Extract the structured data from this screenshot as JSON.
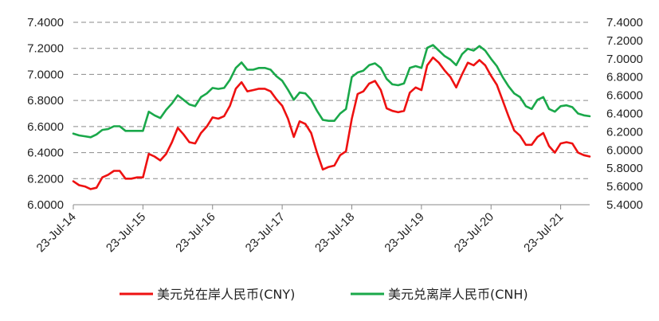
{
  "chart_data": {
    "type": "line",
    "title": "",
    "xlabel": "",
    "ylabel_left": "",
    "ylabel_right": "",
    "grid": "horizontal dashed",
    "legend_position": "bottom",
    "x_tick_labels": [
      "23-Jul-14",
      "23-Jul-15",
      "23-Jul-16",
      "23-Jul-17",
      "23-Jul-18",
      "23-Jul-19",
      "23-Jul-20",
      "23-Jul-21"
    ],
    "x_range": [
      "2014-07",
      "2021-12"
    ],
    "y_left": {
      "ylim": [
        6.0,
        7.4
      ],
      "ticks": [
        "6.0000",
        "6.2000",
        "6.4000",
        "6.6000",
        "6.8000",
        "7.0000",
        "7.2000",
        "7.4000"
      ]
    },
    "y_right": {
      "ylim": [
        5.4,
        7.4
      ],
      "ticks": [
        "5.4000",
        "5.6000",
        "5.8000",
        "6.0000",
        "6.2000",
        "6.4000",
        "6.6000",
        "6.8000",
        "7.0000",
        "7.2000",
        "7.4000"
      ]
    },
    "series": [
      {
        "name": "美元兑在岸人民币(CNY)",
        "color": "#ee1111",
        "axis": "left",
        "x": [
          "2014-07",
          "2014-08",
          "2014-09",
          "2014-10",
          "2014-11",
          "2014-12",
          "2015-01",
          "2015-02",
          "2015-03",
          "2015-04",
          "2015-05",
          "2015-06",
          "2015-07",
          "2015-08",
          "2015-09",
          "2015-10",
          "2015-11",
          "2015-12",
          "2016-01",
          "2016-02",
          "2016-03",
          "2016-04",
          "2016-05",
          "2016-06",
          "2016-07",
          "2016-08",
          "2016-09",
          "2016-10",
          "2016-11",
          "2016-12",
          "2017-01",
          "2017-02",
          "2017-03",
          "2017-04",
          "2017-05",
          "2017-06",
          "2017-07",
          "2017-08",
          "2017-09",
          "2017-10",
          "2017-11",
          "2017-12",
          "2018-01",
          "2018-02",
          "2018-03",
          "2018-04",
          "2018-05",
          "2018-06",
          "2018-07",
          "2018-08",
          "2018-09",
          "2018-10",
          "2018-11",
          "2018-12",
          "2019-01",
          "2019-02",
          "2019-03",
          "2019-04",
          "2019-05",
          "2019-06",
          "2019-07",
          "2019-08",
          "2019-09",
          "2019-10",
          "2019-11",
          "2019-12",
          "2020-01",
          "2020-02",
          "2020-03",
          "2020-04",
          "2020-05",
          "2020-06",
          "2020-07",
          "2020-08",
          "2020-09",
          "2020-10",
          "2020-11",
          "2020-12",
          "2021-01",
          "2021-02",
          "2021-03",
          "2021-04",
          "2021-05",
          "2021-06",
          "2021-07",
          "2021-08",
          "2021-09",
          "2021-10",
          "2021-11",
          "2021-12"
        ],
        "values": [
          6.18,
          6.15,
          6.14,
          6.12,
          6.13,
          6.21,
          6.23,
          6.26,
          6.26,
          6.2,
          6.2,
          6.21,
          6.21,
          6.39,
          6.37,
          6.34,
          6.39,
          6.48,
          6.59,
          6.54,
          6.48,
          6.47,
          6.55,
          6.6,
          6.67,
          6.66,
          6.68,
          6.76,
          6.89,
          6.94,
          6.87,
          6.88,
          6.89,
          6.89,
          6.87,
          6.81,
          6.76,
          6.66,
          6.52,
          6.64,
          6.62,
          6.55,
          6.4,
          6.27,
          6.29,
          6.3,
          6.38,
          6.41,
          6.66,
          6.85,
          6.87,
          6.93,
          6.95,
          6.88,
          6.74,
          6.72,
          6.71,
          6.72,
          6.86,
          6.9,
          6.88,
          7.07,
          7.13,
          7.09,
          7.03,
          6.98,
          6.9,
          7.0,
          7.09,
          7.07,
          7.11,
          7.07,
          6.99,
          6.92,
          6.8,
          6.68,
          6.57,
          6.53,
          6.46,
          6.46,
          6.52,
          6.55,
          6.45,
          6.4,
          6.47,
          6.48,
          6.47,
          6.4,
          6.38,
          6.37
        ]
      },
      {
        "name": "美元兑离岸人民币(CNH)",
        "color": "#1aa84a",
        "axis": "right",
        "x": [
          "2014-07",
          "2014-08",
          "2014-09",
          "2014-10",
          "2014-11",
          "2014-12",
          "2015-01",
          "2015-02",
          "2015-03",
          "2015-04",
          "2015-05",
          "2015-06",
          "2015-07",
          "2015-08",
          "2015-09",
          "2015-10",
          "2015-11",
          "2015-12",
          "2016-01",
          "2016-02",
          "2016-03",
          "2016-04",
          "2016-05",
          "2016-06",
          "2016-07",
          "2016-08",
          "2016-09",
          "2016-10",
          "2016-11",
          "2016-12",
          "2017-01",
          "2017-02",
          "2017-03",
          "2017-04",
          "2017-05",
          "2017-06",
          "2017-07",
          "2017-08",
          "2017-09",
          "2017-10",
          "2017-11",
          "2017-12",
          "2018-01",
          "2018-02",
          "2018-03",
          "2018-04",
          "2018-05",
          "2018-06",
          "2018-07",
          "2018-08",
          "2018-09",
          "2018-10",
          "2018-11",
          "2018-12",
          "2019-01",
          "2019-02",
          "2019-03",
          "2019-04",
          "2019-05",
          "2019-06",
          "2019-07",
          "2019-08",
          "2019-09",
          "2019-10",
          "2019-11",
          "2019-12",
          "2020-01",
          "2020-02",
          "2020-03",
          "2020-04",
          "2020-05",
          "2020-06",
          "2020-07",
          "2020-08",
          "2020-09",
          "2020-10",
          "2020-11",
          "2020-12",
          "2021-01",
          "2021-02",
          "2021-03",
          "2021-04",
          "2021-05",
          "2021-06",
          "2021-07",
          "2021-08",
          "2021-09",
          "2021-10",
          "2021-11",
          "2021-12"
        ],
        "values": [
          6.18,
          6.16,
          6.15,
          6.14,
          6.17,
          6.22,
          6.23,
          6.26,
          6.26,
          6.21,
          6.21,
          6.21,
          6.21,
          6.42,
          6.38,
          6.35,
          6.44,
          6.51,
          6.6,
          6.55,
          6.5,
          6.48,
          6.58,
          6.62,
          6.68,
          6.67,
          6.68,
          6.77,
          6.9,
          6.96,
          6.88,
          6.88,
          6.9,
          6.9,
          6.88,
          6.81,
          6.76,
          6.66,
          6.55,
          6.63,
          6.62,
          6.55,
          6.43,
          6.33,
          6.32,
          6.32,
          6.4,
          6.45,
          6.8,
          6.85,
          6.87,
          6.93,
          6.95,
          6.9,
          6.78,
          6.72,
          6.71,
          6.73,
          6.9,
          6.92,
          6.9,
          7.12,
          7.15,
          7.09,
          7.03,
          6.99,
          6.93,
          7.05,
          7.11,
          7.09,
          7.14,
          7.09,
          7.0,
          6.92,
          6.8,
          6.7,
          6.62,
          6.58,
          6.48,
          6.45,
          6.55,
          6.58,
          6.45,
          6.42,
          6.48,
          6.49,
          6.47,
          6.4,
          6.38,
          6.37
        ]
      }
    ]
  }
}
